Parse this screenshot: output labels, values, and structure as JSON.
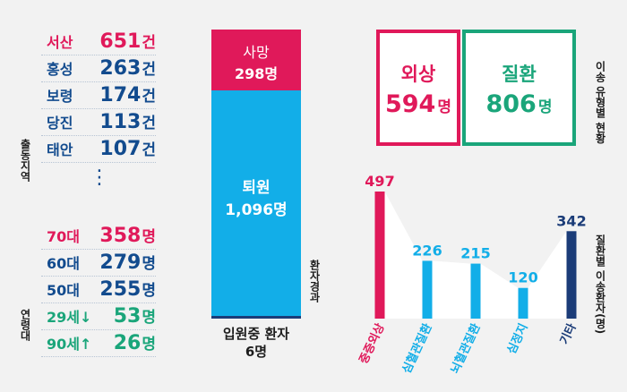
{
  "colors": {
    "pink": "#e0195a",
    "navy": "#124b8e",
    "green": "#1aa57a",
    "sky": "#12aee8",
    "dark": "#1b3c78"
  },
  "left": {
    "region_title": "출동지역",
    "regions": [
      {
        "label": "서산",
        "value": "651",
        "unit": "건",
        "color": "#e0195a"
      },
      {
        "label": "홍성",
        "value": "263",
        "unit": "건",
        "color": "#124b8e"
      },
      {
        "label": "보령",
        "value": "174",
        "unit": "건",
        "color": "#124b8e"
      },
      {
        "label": "당진",
        "value": "113",
        "unit": "건",
        "color": "#124b8e"
      },
      {
        "label": "태안",
        "value": "107",
        "unit": "건",
        "color": "#124b8e"
      }
    ],
    "ellipsis": "⋮",
    "age_title": "연령대",
    "ages": [
      {
        "label": "70대",
        "value": "358",
        "unit": "명",
        "color": "#e0195a"
      },
      {
        "label": "60대",
        "value": "279",
        "unit": "명",
        "color": "#124b8e"
      },
      {
        "label": "50대",
        "value": "255",
        "unit": "명",
        "color": "#124b8e"
      },
      {
        "label": "29세↓",
        "value": "53",
        "unit": "명",
        "color": "#1aa57a"
      },
      {
        "label": "90세↑",
        "value": "26",
        "unit": "명",
        "color": "#1aa57a"
      }
    ]
  },
  "outcome": {
    "title": "환자경과",
    "death_label": "사망",
    "death_value": "298명",
    "discharge_label": "퇴원",
    "discharge_value": "1,096명",
    "inpatient_label": "입원중 환자",
    "inpatient_value": "6명",
    "death": 298,
    "discharge": 1096,
    "inpatient": 6
  },
  "transfer": {
    "title": "이송 유형별 현황",
    "injury_label": "외상",
    "injury_value": "594",
    "illness_label": "질환",
    "illness_value": "806",
    "unit": "명"
  },
  "chart_data": {
    "type": "bar",
    "title": "질환별 이송환자(명)",
    "categories": [
      "중증외상",
      "심혈관질환",
      "뇌혈관질환",
      "심정지",
      "기타"
    ],
    "values": [
      497,
      226,
      215,
      120,
      342
    ],
    "colors": [
      "#e0195a",
      "#12aee8",
      "#12aee8",
      "#12aee8",
      "#1b3c78"
    ],
    "ylim": [
      0,
      497
    ]
  }
}
